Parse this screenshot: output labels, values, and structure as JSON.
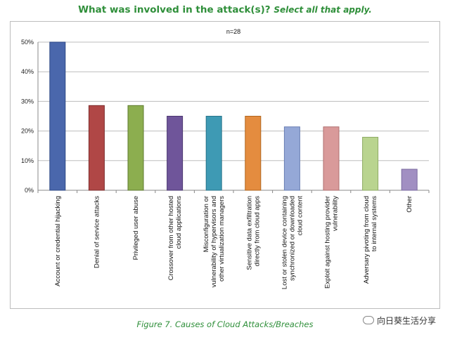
{
  "header": {
    "question": "What was involved in the attack(s)?",
    "instruction": "Select all that apply."
  },
  "figure_caption": "Figure 7. Causes of Cloud Attacks/Breaches",
  "watermark": "向日葵生活分享",
  "colors": {
    "title_green": "#2f8f3a"
  },
  "chart_data": {
    "type": "bar",
    "note": "n=28",
    "ylim": [
      0,
      50
    ],
    "yticks": [
      0,
      10,
      20,
      30,
      40,
      50
    ],
    "ytick_labels": [
      "0%",
      "10%",
      "20%",
      "30%",
      "40%",
      "50%"
    ],
    "grid": true,
    "categories": [
      [
        "Account or credential hijacking"
      ],
      [
        "Denial of service attacks"
      ],
      [
        "Privileged user abuse"
      ],
      [
        "Crossover from other hosted",
        "cloud applications"
      ],
      [
        "Misconfiguration or",
        "vulnerability of hypervisors and",
        "other virtualization managers"
      ],
      [
        "Sensitive data exfiltration",
        "directly from cloud apps"
      ],
      [
        "Lost or stolen device containing",
        "synchronized or downloaded",
        "cloud content"
      ],
      [
        "Exploit against hosting provider",
        "vulnerability"
      ],
      [
        "Adversary pivoting from cloud",
        "to internal systems"
      ],
      [
        "Other"
      ]
    ],
    "values": [
      50.0,
      28.6,
      28.6,
      25.0,
      25.0,
      25.0,
      21.4,
      21.4,
      17.9,
      7.1
    ],
    "bar_colors": [
      "#4a67ac",
      "#b04746",
      "#8cae4f",
      "#6f559a",
      "#3e9ab4",
      "#e48c3f",
      "#95a8d7",
      "#d99a9a",
      "#b9d48f",
      "#a18fc2"
    ],
    "bar_border_colors": [
      "#2f4a86",
      "#7d2e2e",
      "#5f7b31",
      "#4a3670",
      "#28748a",
      "#b0651d",
      "#6a7fb3",
      "#b07070",
      "#8eab64",
      "#7a6aa0"
    ]
  }
}
